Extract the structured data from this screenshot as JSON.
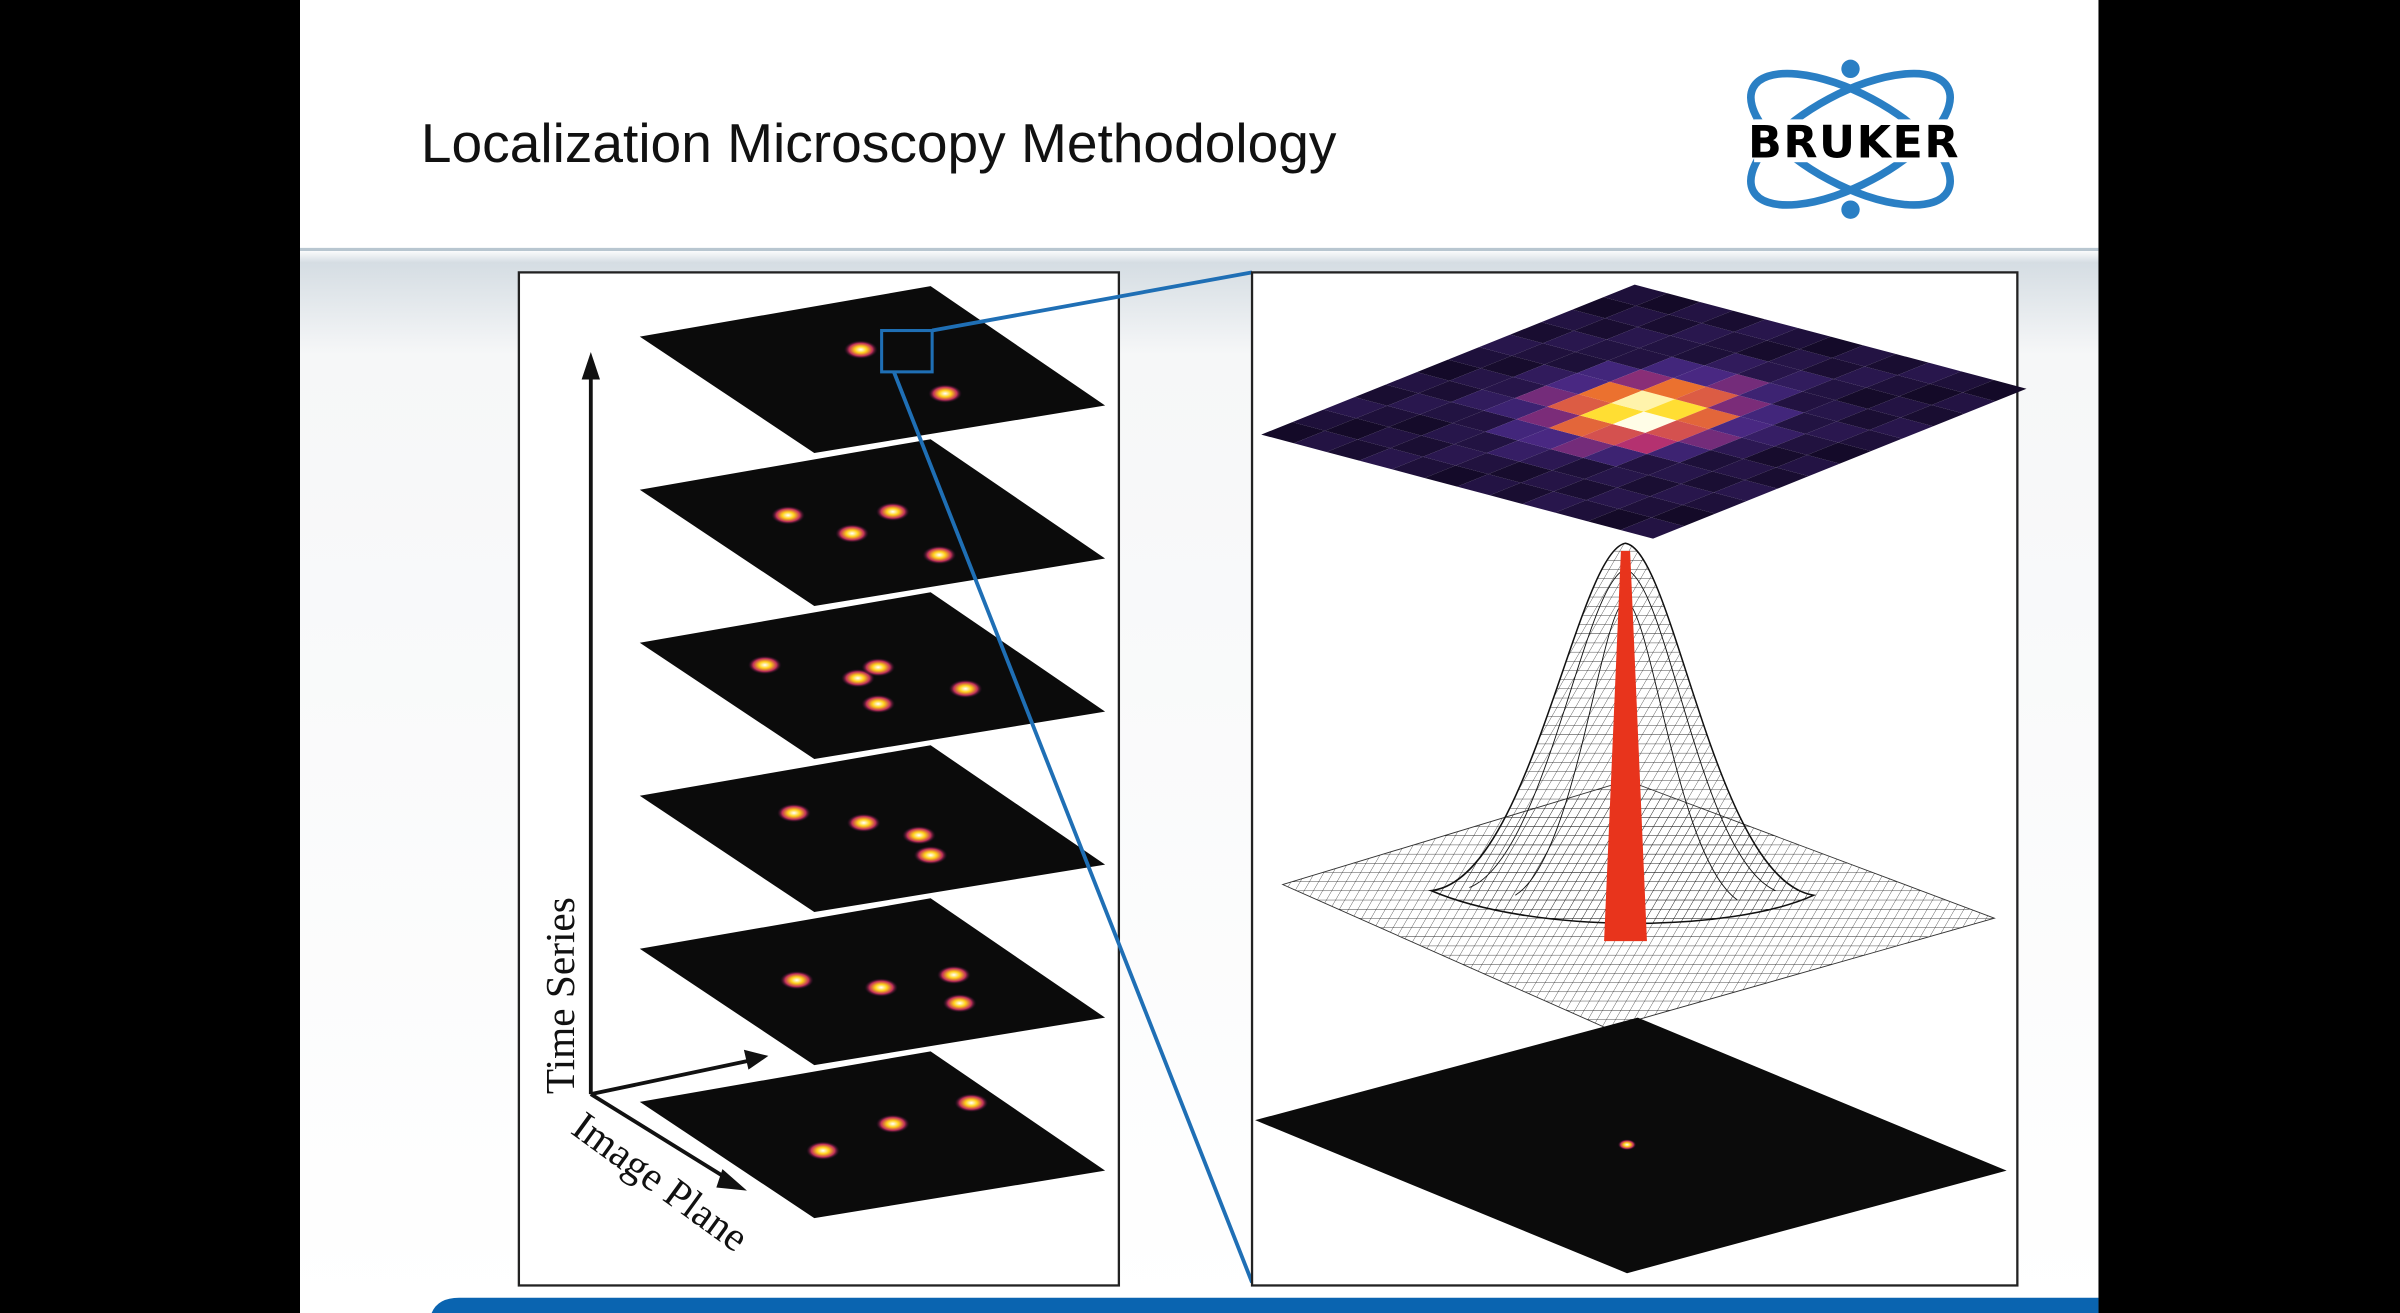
{
  "slide": {
    "title": "Localization Microscopy Methodology",
    "logo_text": "BRUKER",
    "left_figure": {
      "y_axis_label": "Time Series",
      "x_axis_label": "Image Plane",
      "frame_count": 6
    }
  },
  "colors": {
    "accent_blue": "#1f6fb5",
    "logo_blue": "#2a7fc4",
    "footer_blue": "#0a64b0"
  }
}
